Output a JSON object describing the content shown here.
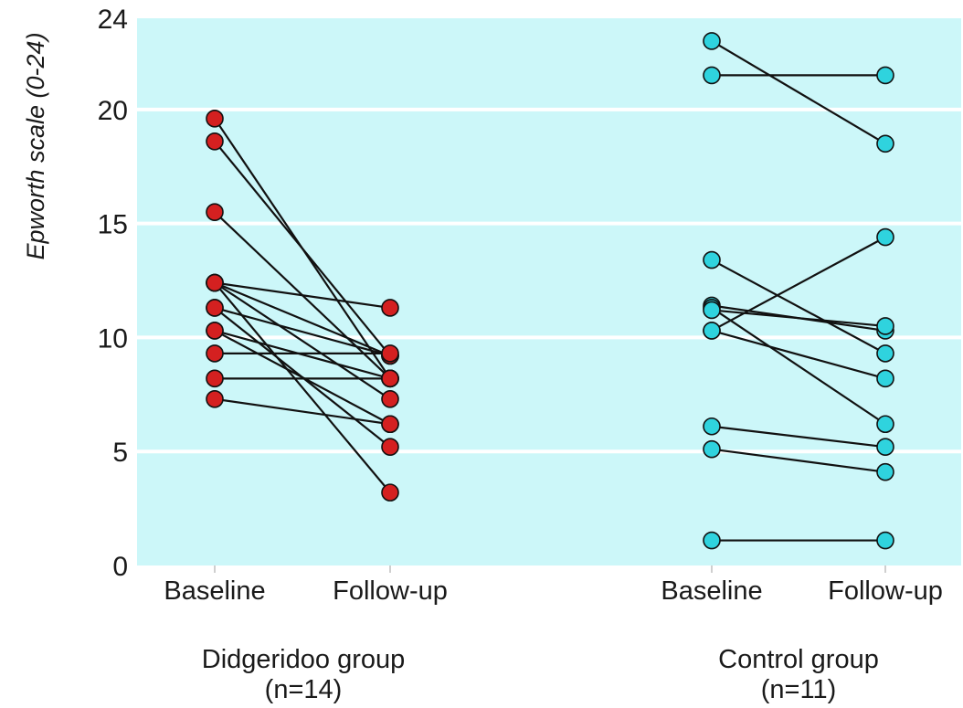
{
  "chart_data": {
    "type": "line",
    "title": "",
    "ylabel": "Epworth scale (0-24)",
    "ylim": [
      0,
      24
    ],
    "yticks": [
      0,
      5,
      10,
      15,
      20,
      24
    ],
    "ytick_labels": [
      "0",
      "5",
      "10",
      "15",
      "20",
      "24"
    ],
    "grid": true,
    "colors": {
      "plot_background": "#ccf7f9",
      "grid": "#ffffff",
      "didgeridoo_marker": "#d42020",
      "control_marker": "#2fd3de",
      "line": "#111111"
    },
    "groups": [
      {
        "name": "Didgeridoo group",
        "n_label": "(n=14)",
        "categories": [
          "Baseline",
          "Follow-up"
        ],
        "color": "#d42020",
        "pairs": [
          [
            19.6,
            8.2
          ],
          [
            18.6,
            9.2
          ],
          [
            15.5,
            8.2
          ],
          [
            12.4,
            11.3
          ],
          [
            12.4,
            9.2
          ],
          [
            12.4,
            7.3
          ],
          [
            12.4,
            3.2
          ],
          [
            11.3,
            9.2
          ],
          [
            11.3,
            5.2
          ],
          [
            10.3,
            8.2
          ],
          [
            10.3,
            6.2
          ],
          [
            9.3,
            9.3
          ],
          [
            8.2,
            8.2
          ],
          [
            7.3,
            6.2
          ]
        ]
      },
      {
        "name": "Control group",
        "n_label": "(n=11)",
        "categories": [
          "Baseline",
          "Follow-up"
        ],
        "color": "#2fd3de",
        "pairs": [
          [
            23.0,
            18.5
          ],
          [
            21.5,
            21.5
          ],
          [
            13.4,
            9.3
          ],
          [
            11.4,
            10.3
          ],
          [
            11.3,
            6.2
          ],
          [
            11.2,
            10.5
          ],
          [
            10.3,
            14.4
          ],
          [
            10.3,
            8.2
          ],
          [
            6.1,
            5.2
          ],
          [
            5.1,
            4.1
          ],
          [
            1.1,
            1.1
          ]
        ]
      }
    ]
  }
}
